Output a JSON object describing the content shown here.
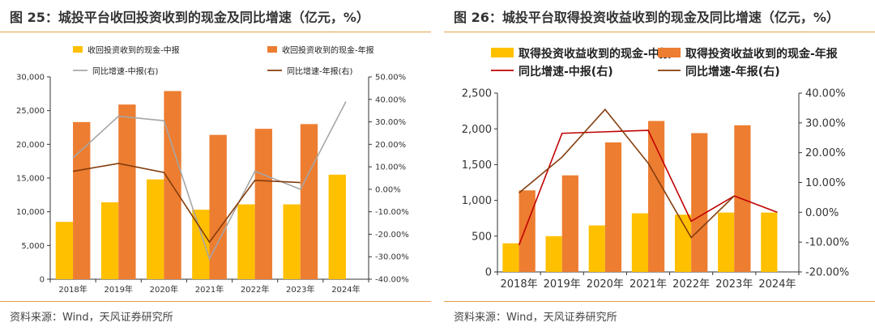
{
  "colors": {
    "bar_mid": "#FFC000",
    "bar_year": "#ED7D31",
    "line_left_mid": "#A6A6A6",
    "line_left_year": "#843C0C",
    "line_right_mid": "#C00000",
    "line_right_year": "#843C0C",
    "rule": "#E8A04A"
  },
  "source_left": "资料来源：Wind，天风证券研究所",
  "source_right": "资料来源：Wind，天风证券研究所",
  "chart_data": [
    {
      "type": "bar",
      "title": "图 25：城投平台收回投资收到的现金及同比增速（亿元，%）",
      "categories": [
        "2018年",
        "2019年",
        "2020年",
        "2021年",
        "2022年",
        "2023年",
        "2024年"
      ],
      "series": [
        {
          "name": "收回投资收到的现金-中报",
          "kind": "bar",
          "axis": "left",
          "values": [
            8500,
            11400,
            14800,
            10300,
            11100,
            11100,
            15500
          ]
        },
        {
          "name": "收回投资收到的现金-年报",
          "kind": "bar",
          "axis": "left",
          "values": [
            23300,
            25900,
            27900,
            21400,
            22300,
            23000,
            null
          ]
        },
        {
          "name": "同比增速-中报(右)",
          "kind": "line",
          "axis": "right",
          "values": [
            14.0,
            32.5,
            30.5,
            -31.0,
            8.0,
            0.0,
            39.0
          ]
        },
        {
          "name": "同比增速-年报(右)",
          "kind": "line",
          "axis": "right",
          "values": [
            8.0,
            11.5,
            7.5,
            -23.5,
            4.0,
            3.0,
            null
          ]
        }
      ],
      "ylim_left": [
        0,
        30000
      ],
      "yticks_left": [
        "0",
        "5,000",
        "10,000",
        "15,000",
        "20,000",
        "25,000",
        "30,000"
      ],
      "ylim_right": [
        -40,
        50
      ],
      "yticks_right": [
        "-40.00%",
        "-30.00%",
        "-20.00%",
        "-10.00%",
        "0.00%",
        "10.00%",
        "20.00%",
        "30.00%",
        "40.00%",
        "50.00%"
      ],
      "legend_placement": "top"
    },
    {
      "type": "bar",
      "title": "图 26：城投平台取得投资收益收到的现金及同比增速（亿元，%）",
      "categories": [
        "2018年",
        "2019年",
        "2020年",
        "2021年",
        "2022年",
        "2023年",
        "2024年"
      ],
      "series": [
        {
          "name": "取得投资收益收到的现金-中报",
          "kind": "bar",
          "axis": "left",
          "values": [
            400,
            500,
            650,
            820,
            800,
            830,
            830
          ]
        },
        {
          "name": "取得投资收益收到的现金-年报",
          "kind": "bar",
          "axis": "left",
          "values": [
            1140,
            1350,
            1810,
            2110,
            1940,
            2050,
            null
          ]
        },
        {
          "name": "同比增速-中报(右)",
          "kind": "line",
          "axis": "right",
          "values": [
            -11.0,
            26.5,
            27.0,
            27.5,
            -3.0,
            5.5,
            0.0
          ]
        },
        {
          "name": "同比增速-年报(右)",
          "kind": "line",
          "axis": "right",
          "values": [
            6.5,
            18.5,
            34.5,
            16.5,
            -8.5,
            5.5,
            null
          ]
        }
      ],
      "ylim_left": [
        0,
        2500
      ],
      "yticks_left": [
        "0",
        "500",
        "1,000",
        "1,500",
        "2,000",
        "2,500"
      ],
      "ylim_right": [
        -20,
        40
      ],
      "yticks_right": [
        "-20.00%",
        "-10.00%",
        "0.00%",
        "10.00%",
        "20.00%",
        "30.00%",
        "40.00%"
      ],
      "legend_placement": "top"
    }
  ]
}
